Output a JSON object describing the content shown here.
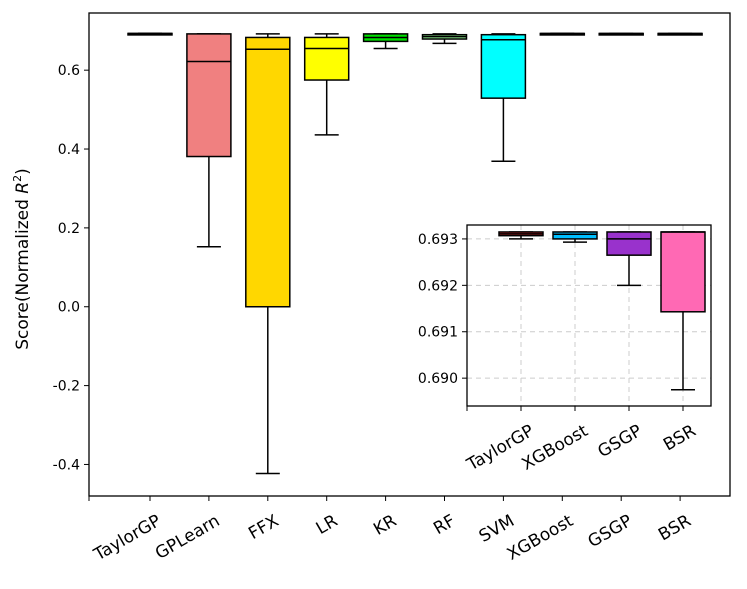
{
  "chart_data": [
    {
      "type": "box",
      "title": "",
      "xlabel": "",
      "ylabel_prefix": "Score(Normalized ",
      "ylabel_symbol": "R",
      "ylabel_sup": "2",
      "ylabel_suffix": ")",
      "ylim": [
        -0.48,
        0.745
      ],
      "yticks": [
        -0.4,
        -0.2,
        0.0,
        0.2,
        0.4,
        0.6
      ],
      "ytick_labels": [
        "-0.4",
        "-0.2",
        "0.0",
        "0.2",
        "0.4",
        "0.6"
      ],
      "grid": false,
      "categories": [
        "TaylorGP",
        "GPLearn",
        "FFX",
        "LR",
        "KR",
        "RF",
        "SVM",
        "XGBoost",
        "GSGP",
        "BSR"
      ],
      "colors": [
        "#d62728",
        "#f08080",
        "#ffd700",
        "#ffff00",
        "#00e000",
        "#90ee90",
        "#00ffff",
        "#00bfff",
        "#9932cc",
        "#ff69b4"
      ],
      "boxes": [
        {
          "whislo": 0.693,
          "q1": 0.693,
          "median": 0.6931,
          "q3": 0.6932,
          "whishi": 0.6932
        },
        {
          "whislo": 0.152,
          "q1": 0.381,
          "median": 0.622,
          "q3": 0.692,
          "whishi": 0.692
        },
        {
          "whislo": -0.423,
          "q1": 0.0,
          "median": 0.653,
          "q3": 0.683,
          "whishi": 0.692
        },
        {
          "whislo": 0.436,
          "q1": 0.575,
          "median": 0.655,
          "q3": 0.683,
          "whishi": 0.692
        },
        {
          "whislo": 0.655,
          "q1": 0.673,
          "median": 0.683,
          "q3": 0.692,
          "whishi": 0.692
        },
        {
          "whislo": 0.668,
          "q1": 0.679,
          "median": 0.685,
          "q3": 0.69,
          "whishi": 0.692
        },
        {
          "whislo": 0.369,
          "q1": 0.529,
          "median": 0.677,
          "q3": 0.69,
          "whishi": 0.692
        },
        {
          "whislo": 0.6929,
          "q1": 0.693,
          "median": 0.6931,
          "q3": 0.6931,
          "whishi": 0.6931
        },
        {
          "whislo": 0.692,
          "q1": 0.6926,
          "median": 0.693,
          "q3": 0.6931,
          "whishi": 0.6931
        },
        {
          "whislo": 0.6897,
          "q1": 0.6914,
          "median": 0.6931,
          "q3": 0.6931,
          "whishi": 0.6931
        }
      ]
    },
    {
      "type": "box",
      "title": "",
      "xlabel": "",
      "ylabel": "",
      "ylim": [
        0.6894,
        0.6933
      ],
      "yticks": [
        0.69,
        0.691,
        0.692,
        0.693
      ],
      "ytick_labels": [
        "0.690",
        "0.691",
        "0.692",
        "0.693"
      ],
      "grid": true,
      "categories": [
        "TaylorGP",
        "XGBoost",
        "GSGP",
        "BSR"
      ],
      "colors": [
        "#d62728",
        "#00bfff",
        "#9932cc",
        "#ff69b4"
      ],
      "boxes": [
        {
          "whislo": 0.693,
          "q1": 0.69307,
          "median": 0.69311,
          "q3": 0.69315,
          "whishi": 0.69315
        },
        {
          "whislo": 0.69293,
          "q1": 0.693,
          "median": 0.6931,
          "q3": 0.69315,
          "whishi": 0.69315
        },
        {
          "whislo": 0.692,
          "q1": 0.69265,
          "median": 0.693,
          "q3": 0.69315,
          "whishi": 0.69315
        },
        {
          "whislo": 0.68975,
          "q1": 0.69143,
          "median": 0.69315,
          "q3": 0.69315,
          "whishi": 0.69315
        }
      ]
    }
  ]
}
